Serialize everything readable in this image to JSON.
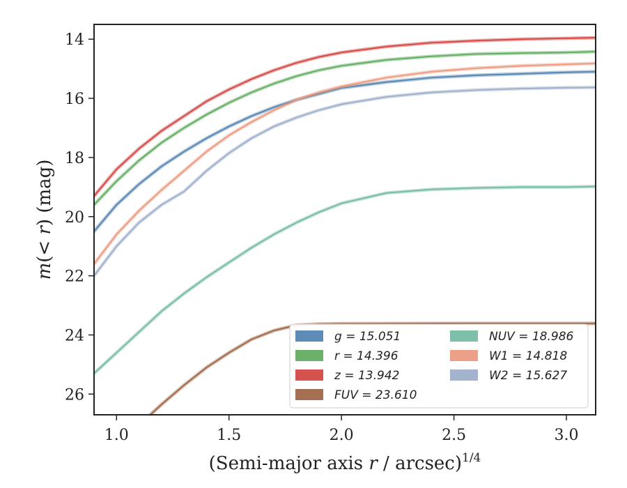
{
  "chart_data": {
    "type": "line",
    "xlabel_main": "(Semi-major axis ",
    "xlabel_var": "r",
    "xlabel_rest": " / arcsec)",
    "xlabel_sup": "1/4",
    "ylabel_pre": "m",
    "ylabel_mid": "(< ",
    "ylabel_var": "r",
    "ylabel_post": ") (mag)",
    "xlim": [
      0.9,
      3.13
    ],
    "ylim": [
      26.7,
      13.5
    ],
    "y_inverted": true,
    "x_ticks": [
      1.0,
      1.5,
      2.0,
      2.5,
      3.0
    ],
    "x_tick_labels": [
      "1.0",
      "1.5",
      "2.0",
      "2.5",
      "3.0"
    ],
    "y_ticks": [
      14,
      16,
      18,
      20,
      22,
      24,
      26
    ],
    "y_tick_labels": [
      "14",
      "16",
      "18",
      "20",
      "22",
      "24",
      "26"
    ],
    "legend_position": "lower-right",
    "series": [
      {
        "name": "g = 15.051",
        "color": "#4c7fae",
        "x": [
          0.9,
          1.0,
          1.1,
          1.2,
          1.3,
          1.4,
          1.5,
          1.6,
          1.7,
          1.8,
          1.9,
          2.0,
          2.2,
          2.4,
          2.6,
          2.8,
          3.0,
          3.13
        ],
        "y": [
          20.5,
          19.6,
          18.9,
          18.3,
          17.8,
          17.35,
          16.95,
          16.6,
          16.3,
          16.05,
          15.85,
          15.65,
          15.45,
          15.3,
          15.22,
          15.17,
          15.12,
          15.1
        ]
      },
      {
        "name": "r = 14.396",
        "color": "#5ca85a",
        "x": [
          0.9,
          1.0,
          1.1,
          1.2,
          1.3,
          1.4,
          1.5,
          1.6,
          1.7,
          1.8,
          1.9,
          2.0,
          2.2,
          2.4,
          2.6,
          2.8,
          3.0,
          3.13
        ],
        "y": [
          19.6,
          18.8,
          18.1,
          17.5,
          17.0,
          16.55,
          16.15,
          15.8,
          15.5,
          15.25,
          15.05,
          14.9,
          14.7,
          14.58,
          14.5,
          14.47,
          14.45,
          14.42
        ]
      },
      {
        "name": "z = 13.942",
        "color": "#d03f3c",
        "x": [
          0.9,
          1.0,
          1.1,
          1.2,
          1.3,
          1.4,
          1.5,
          1.6,
          1.7,
          1.8,
          1.9,
          2.0,
          2.2,
          2.4,
          2.6,
          2.8,
          3.0,
          3.13
        ],
        "y": [
          19.3,
          18.4,
          17.7,
          17.1,
          16.6,
          16.1,
          15.7,
          15.35,
          15.05,
          14.8,
          14.6,
          14.45,
          14.25,
          14.12,
          14.05,
          14.0,
          13.97,
          13.95
        ]
      },
      {
        "name": "FUV = 23.610",
        "color": "#9a5f3f",
        "x": [
          1.15,
          1.2,
          1.3,
          1.4,
          1.5,
          1.6,
          1.7,
          1.8,
          1.9,
          2.0,
          2.5,
          3.0,
          3.13
        ],
        "y": [
          26.7,
          26.35,
          25.7,
          25.1,
          24.6,
          24.15,
          23.85,
          23.67,
          23.63,
          23.62,
          23.61,
          23.61,
          23.61
        ]
      },
      {
        "name": "NUV = 18.986",
        "color": "#6fb8a0",
        "x": [
          0.9,
          1.0,
          1.1,
          1.2,
          1.3,
          1.4,
          1.5,
          1.6,
          1.7,
          1.8,
          1.9,
          2.0,
          2.2,
          2.4,
          2.6,
          2.8,
          3.0,
          3.13
        ],
        "y": [
          25.3,
          24.6,
          23.9,
          23.2,
          22.6,
          22.05,
          21.55,
          21.05,
          20.6,
          20.2,
          19.85,
          19.55,
          19.2,
          19.08,
          19.03,
          19.0,
          19.0,
          18.98
        ]
      },
      {
        "name": "W1 = 14.818",
        "color": "#e9967a",
        "x": [
          0.9,
          1.0,
          1.1,
          1.2,
          1.3,
          1.4,
          1.5,
          1.6,
          1.7,
          1.8,
          1.9,
          2.0,
          2.2,
          2.4,
          2.6,
          2.8,
          3.0,
          3.13
        ],
        "y": [
          21.6,
          20.6,
          19.8,
          19.1,
          18.45,
          17.8,
          17.25,
          16.8,
          16.4,
          16.05,
          15.8,
          15.6,
          15.3,
          15.1,
          14.98,
          14.9,
          14.85,
          14.82
        ]
      },
      {
        "name": "W2 = 15.627",
        "color": "#9aabc8",
        "x": [
          0.9,
          1.0,
          1.1,
          1.2,
          1.3,
          1.4,
          1.5,
          1.6,
          1.7,
          1.8,
          1.9,
          2.0,
          2.2,
          2.4,
          2.6,
          2.8,
          3.0,
          3.13
        ],
        "y": [
          22.0,
          21.0,
          20.2,
          19.6,
          19.15,
          18.45,
          17.85,
          17.35,
          16.95,
          16.65,
          16.4,
          16.2,
          15.95,
          15.8,
          15.72,
          15.67,
          15.64,
          15.63
        ]
      }
    ]
  }
}
